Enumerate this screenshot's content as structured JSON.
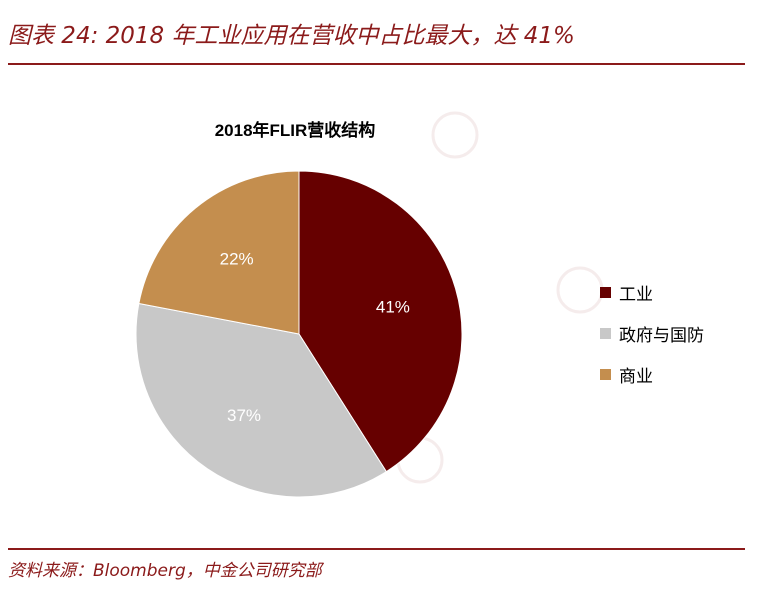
{
  "figure_title": "图表 24: 2018 年工业应用在营收中占比最大，达 41%",
  "source_note": "资料来源：Bloomberg，中金公司研究部",
  "colors": {
    "accent": "#8b1a1a"
  },
  "chart_data": {
    "type": "pie",
    "title": "2018年FLIR营收结构",
    "categories": [
      "工业",
      "政府与国防",
      "商业"
    ],
    "values": [
      41,
      37,
      22
    ],
    "labels": [
      "41%",
      "37%",
      "22%"
    ],
    "colors": [
      "#660000",
      "#c8c8c8",
      "#c48e4e"
    ],
    "legend_position": "right"
  }
}
